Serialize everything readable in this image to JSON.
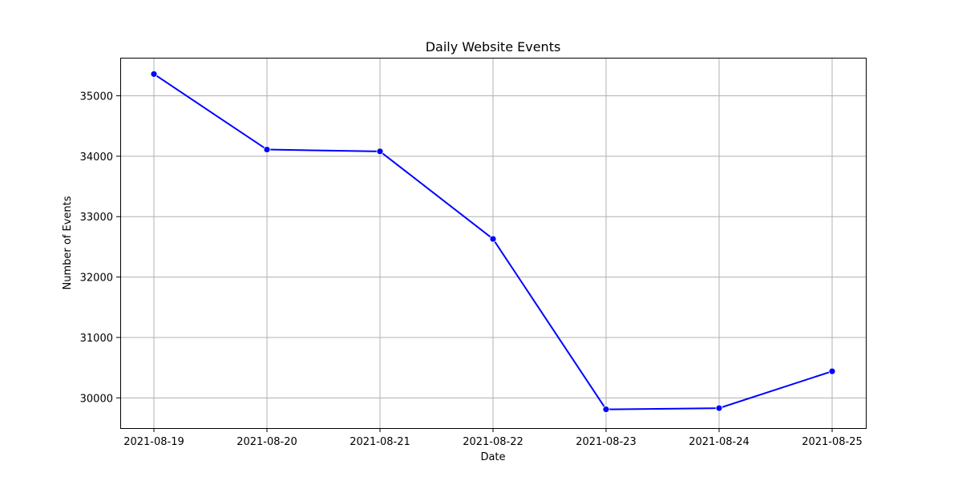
{
  "chart_data": {
    "type": "line",
    "title": "Daily Website Events",
    "xlabel": "Date",
    "ylabel": "Number of Events",
    "x": [
      "2021-08-19",
      "2021-08-20",
      "2021-08-21",
      "2021-08-22",
      "2021-08-23",
      "2021-08-24",
      "2021-08-25"
    ],
    "series": [
      {
        "values": [
          35360,
          34110,
          34080,
          32630,
          29810,
          29830,
          30440
        ],
        "color": "#0000ff",
        "marker": "circle"
      }
    ],
    "yticks": [
      "30000",
      "31000",
      "32000",
      "33000",
      "34000",
      "35000"
    ],
    "ylim": [
      29500,
      35630
    ],
    "grid": true
  }
}
